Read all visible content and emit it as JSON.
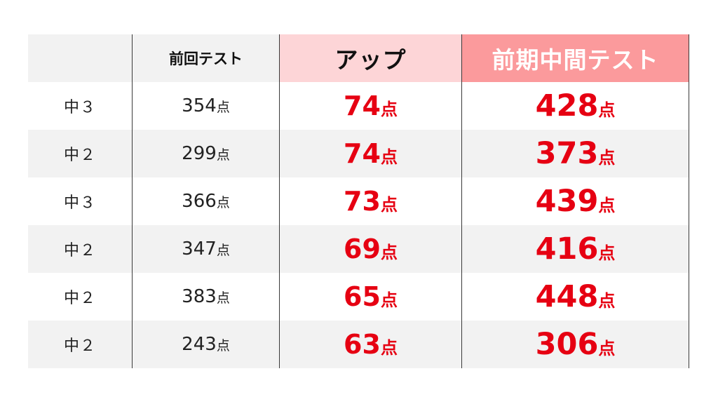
{
  "headers": {
    "grade": "",
    "previous_test": "前回テスト",
    "increase": "アップ",
    "midterm_test": "前期中間テスト"
  },
  "unit": "点",
  "colors": {
    "header_bg": "#f2f2f2",
    "increase_header_bg": "#fdd5d7",
    "midterm_header_bg": "#fb9a9c",
    "highlight_text": "#e60012",
    "alt_row_bg": "#f2f2f2"
  },
  "rows": [
    {
      "grade": "中３",
      "previous": "354",
      "increase": "74",
      "midterm": "428"
    },
    {
      "grade": "中２",
      "previous": "299",
      "increase": "74",
      "midterm": "373"
    },
    {
      "grade": "中３",
      "previous": "366",
      "increase": "73",
      "midterm": "439"
    },
    {
      "grade": "中２",
      "previous": "347",
      "increase": "69",
      "midterm": "416"
    },
    {
      "grade": "中２",
      "previous": "383",
      "increase": "65",
      "midterm": "448"
    },
    {
      "grade": "中２",
      "previous": "243",
      "increase": "63",
      "midterm": "306"
    }
  ]
}
